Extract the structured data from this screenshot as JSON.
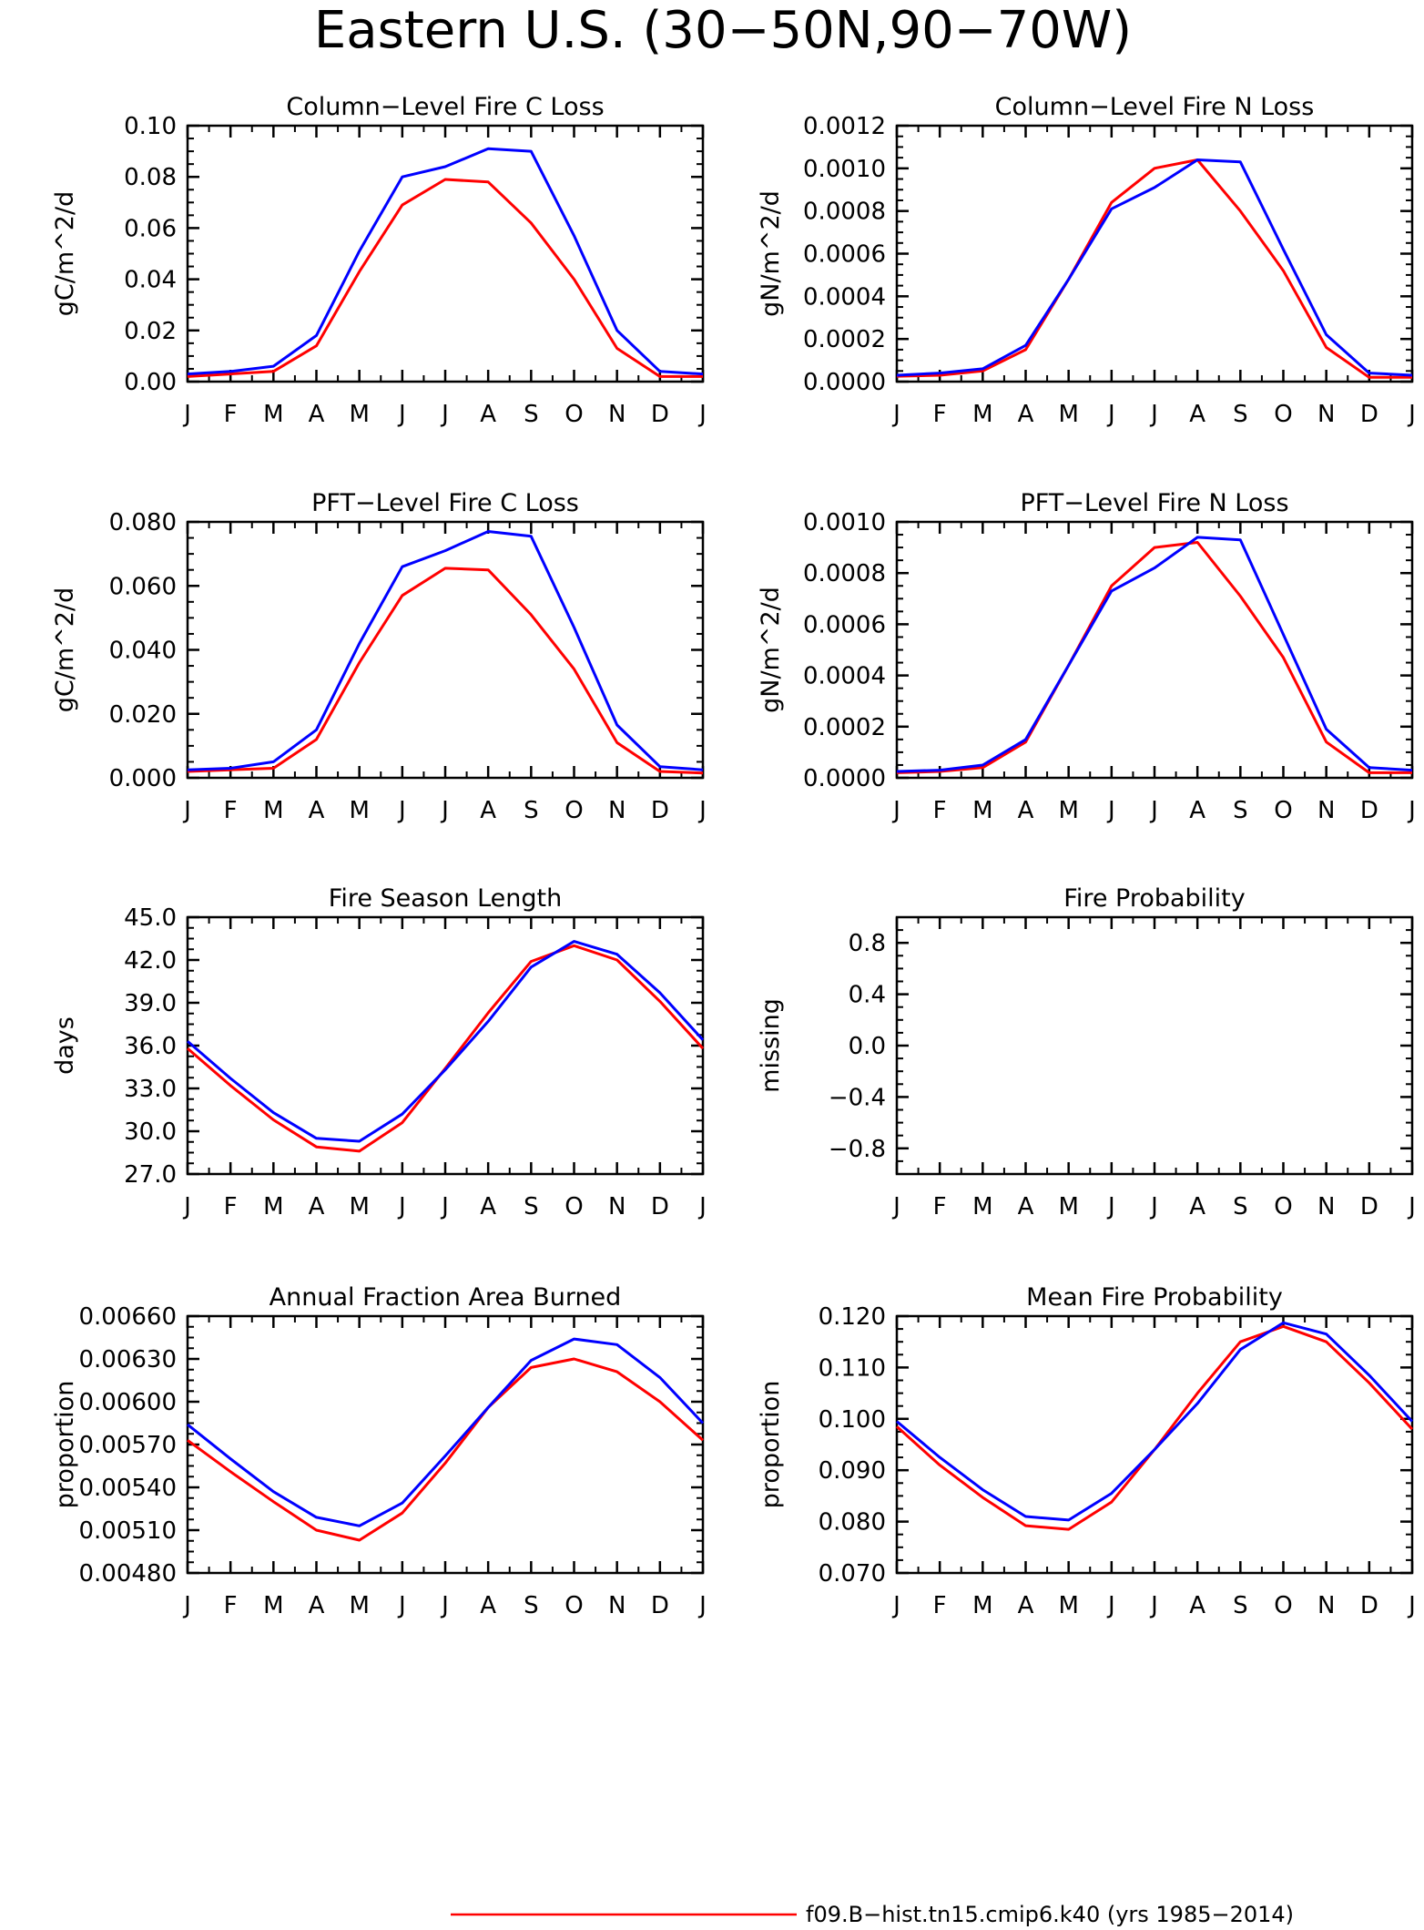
{
  "title": "Eastern U.S. (30−50N,90−70W)",
  "months": [
    "J",
    "F",
    "M",
    "A",
    "M",
    "J",
    "J",
    "A",
    "S",
    "O",
    "N",
    "D",
    "J"
  ],
  "colors": {
    "red": "#ff0000",
    "blue": "#0000ff"
  },
  "legend": {
    "red_label": "f09.B−hist.tn15.cmip6.k40 (yrs 1985−2014)"
  },
  "chart_data": [
    {
      "type": "line",
      "title": "Column−Level Fire C Loss",
      "ylabel": "gC/m^2/d",
      "ylim": [
        0,
        0.1
      ],
      "yticks": [
        "0.00",
        "0.02",
        "0.04",
        "0.06",
        "0.08",
        "0.10"
      ],
      "series": [
        {
          "color": "red",
          "values": [
            0.002,
            0.003,
            0.004,
            0.014,
            0.043,
            0.069,
            0.079,
            0.078,
            0.062,
            0.04,
            0.013,
            0.002,
            0.002
          ]
        },
        {
          "color": "blue",
          "values": [
            0.003,
            0.004,
            0.006,
            0.018,
            0.051,
            0.08,
            0.084,
            0.091,
            0.09,
            0.057,
            0.02,
            0.004,
            0.003
          ]
        }
      ]
    },
    {
      "type": "line",
      "title": "Column−Level Fire N Loss",
      "ylabel": "gN/m^2/d",
      "ylim": [
        0,
        0.0012
      ],
      "yticks": [
        "0.0000",
        "0.0002",
        "0.0004",
        "0.0006",
        "0.0008",
        "0.0010",
        "0.0012"
      ],
      "series": [
        {
          "color": "red",
          "values": [
            2.5e-05,
            3e-05,
            5e-05,
            0.00015,
            0.00048,
            0.00084,
            0.001,
            0.00104,
            0.0008,
            0.00052,
            0.00016,
            2e-05,
            2e-05
          ]
        },
        {
          "color": "blue",
          "values": [
            3e-05,
            4e-05,
            6e-05,
            0.00017,
            0.00048,
            0.00081,
            0.00091,
            0.00104,
            0.00103,
            0.00062,
            0.00022,
            4e-05,
            3e-05
          ]
        }
      ]
    },
    {
      "type": "line",
      "title": "PFT−Level Fire C Loss",
      "ylabel": "gC/m^2/d",
      "ylim": [
        0,
        0.08
      ],
      "yticks": [
        "0.000",
        "0.020",
        "0.040",
        "0.060",
        "0.080"
      ],
      "series": [
        {
          "color": "red",
          "values": [
            0.002,
            0.0025,
            0.003,
            0.012,
            0.036,
            0.057,
            0.0655,
            0.065,
            0.051,
            0.034,
            0.011,
            0.002,
            0.0015
          ]
        },
        {
          "color": "blue",
          "values": [
            0.0025,
            0.003,
            0.005,
            0.015,
            0.042,
            0.066,
            0.071,
            0.077,
            0.0755,
            0.047,
            0.0165,
            0.0035,
            0.0025
          ]
        }
      ]
    },
    {
      "type": "line",
      "title": "PFT−Level Fire N Loss",
      "ylabel": "gN/m^2/d",
      "ylim": [
        0,
        0.001
      ],
      "yticks": [
        "0.0000",
        "0.0002",
        "0.0004",
        "0.0006",
        "0.0008",
        "0.0010"
      ],
      "series": [
        {
          "color": "red",
          "values": [
            2e-05,
            2.5e-05,
            4e-05,
            0.00014,
            0.00044,
            0.00075,
            0.0009,
            0.00092,
            0.00071,
            0.00047,
            0.00014,
            2e-05,
            2e-05
          ]
        },
        {
          "color": "blue",
          "values": [
            2.5e-05,
            3e-05,
            5e-05,
            0.00015,
            0.00044,
            0.00073,
            0.00082,
            0.00094,
            0.00093,
            0.00056,
            0.00019,
            4e-05,
            3e-05
          ]
        }
      ]
    },
    {
      "type": "line",
      "title": "Fire Season Length",
      "ylabel": "days",
      "ylim": [
        27.0,
        45.0
      ],
      "yticks": [
        "27.0",
        "30.0",
        "33.0",
        "36.0",
        "39.0",
        "42.0",
        "45.0"
      ],
      "series": [
        {
          "color": "red",
          "values": [
            35.8,
            33.2,
            30.8,
            28.9,
            28.6,
            30.6,
            34.4,
            38.3,
            41.9,
            43.0,
            42.0,
            39.1,
            35.8
          ]
        },
        {
          "color": "blue",
          "values": [
            36.3,
            33.7,
            31.3,
            29.5,
            29.3,
            31.2,
            34.3,
            37.7,
            41.5,
            43.3,
            42.4,
            39.7,
            36.4
          ]
        }
      ]
    },
    {
      "type": "line",
      "title": "Fire Probability",
      "ylabel": "missing",
      "ylim": [
        -1.0,
        1.0
      ],
      "yticks": [
        "−0.8",
        "−0.4",
        "0.0",
        "0.4",
        "0.8"
      ],
      "series": []
    },
    {
      "type": "line",
      "title": "Annual Fraction Area Burned",
      "ylabel": "proportion",
      "ylim": [
        0.0048,
        0.0066
      ],
      "yticks": [
        "0.00480",
        "0.00510",
        "0.00540",
        "0.00570",
        "0.00600",
        "0.00630",
        "0.00660"
      ],
      "series": [
        {
          "color": "red",
          "values": [
            0.00573,
            0.00551,
            0.0053,
            0.0051,
            0.00503,
            0.00522,
            0.00557,
            0.00596,
            0.00624,
            0.0063,
            0.00621,
            0.006,
            0.00573
          ]
        },
        {
          "color": "blue",
          "values": [
            0.00584,
            0.0056,
            0.00537,
            0.00519,
            0.00513,
            0.00529,
            0.00562,
            0.00596,
            0.00629,
            0.00644,
            0.0064,
            0.00617,
            0.00585
          ]
        }
      ]
    },
    {
      "type": "line",
      "title": "Mean Fire Probability",
      "ylabel": "proportion",
      "ylim": [
        0.07,
        0.12
      ],
      "yticks": [
        "0.070",
        "0.080",
        "0.090",
        "0.100",
        "0.110",
        "0.120"
      ],
      "series": [
        {
          "color": "red",
          "values": [
            0.0985,
            0.091,
            0.0847,
            0.0792,
            0.0785,
            0.0838,
            0.094,
            0.105,
            0.115,
            0.118,
            0.115,
            0.107,
            0.098
          ]
        },
        {
          "color": "blue",
          "values": [
            0.0995,
            0.0925,
            0.0862,
            0.081,
            0.0803,
            0.0855,
            0.094,
            0.103,
            0.1135,
            0.1187,
            0.1165,
            0.1085,
            0.0995
          ]
        }
      ]
    }
  ]
}
